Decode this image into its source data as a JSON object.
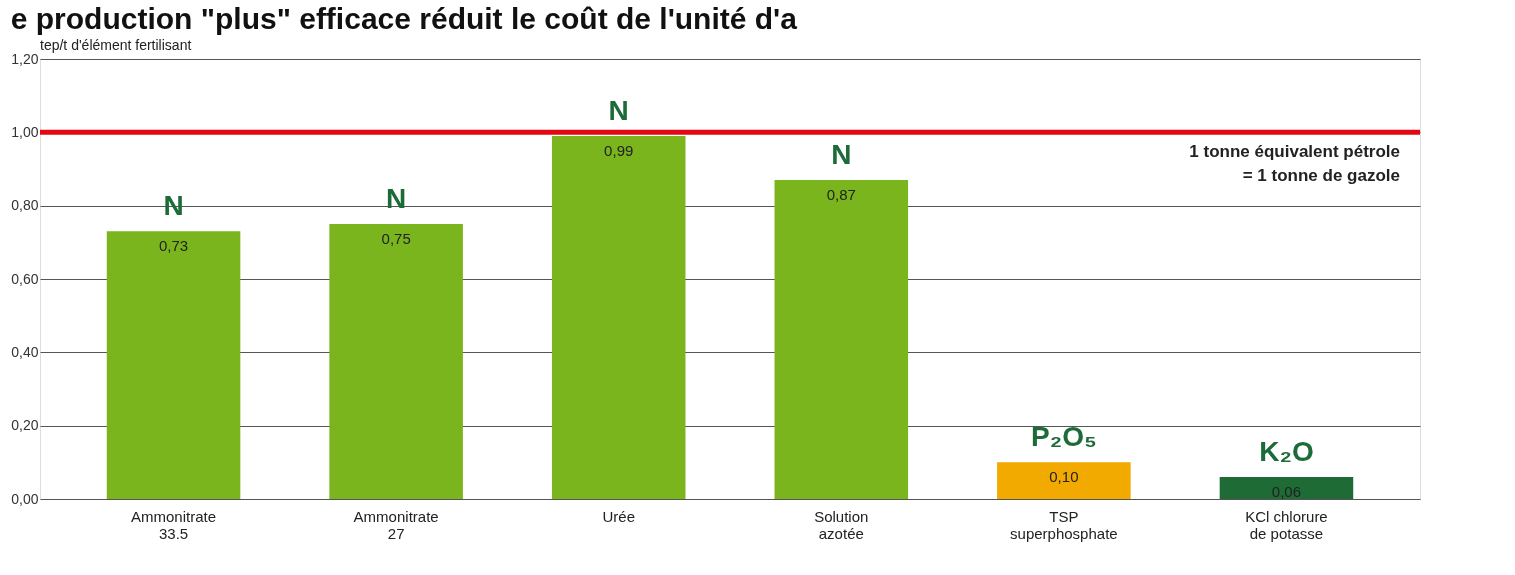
{
  "chart_data": {
    "type": "bar",
    "title": "e production \"plus\" efficace réduit le coût de l'unité d'a",
    "ylabel": "tep/t d'élément fertilisant",
    "categories": [
      "Ammonitrate\n33.5",
      "Ammonitrate\n27",
      "Urée",
      "Solution\nazotée",
      "TSP\nsuperphosphate",
      "KCl chlorure\nde potasse"
    ],
    "values": [
      0.73,
      0.75,
      0.99,
      0.87,
      0.1,
      0.06
    ],
    "colors": [
      "#7ab51d",
      "#7ab51d",
      "#7ab51d",
      "#7ab51d",
      "#f2a900",
      "#1e6b35"
    ],
    "value_labels": [
      "0,73",
      "0,75",
      "0,99",
      "0,87",
      "0,10",
      "0,06"
    ],
    "ylim": [
      0,
      1.2
    ],
    "yticks": [
      {
        "value": 0,
        "label": "0,00"
      },
      {
        "value": 0.2,
        "label": "0,20"
      },
      {
        "value": 0.4,
        "label": "0,40"
      },
      {
        "value": 0.6,
        "label": "0,60"
      },
      {
        "value": 0.8,
        "label": "0,80"
      },
      {
        "value": 1.0,
        "label": "1,00"
      },
      {
        "value": 1.2,
        "label": "1,20"
      }
    ],
    "grid": "y",
    "ref_lines": [
      {
        "axis": "y",
        "value": 1.0,
        "label": "1 tonne équivalent pétrole\n= 1 tonne de gazole",
        "color": "#e30613"
      }
    ],
    "annotations": [
      {
        "text": "N",
        "x": "Ammonitrate\n33.5",
        "y": 0.73
      },
      {
        "text": "N",
        "x": "Ammonitrate\n27",
        "y": 0.75
      },
      {
        "text": "N",
        "x": "Urée",
        "y": 0.99
      },
      {
        "text": "N",
        "x": "Solution\nazotée",
        "y": 0.87
      },
      {
        "text": "P₂O₅",
        "x": "TSP\nsuperphosphate",
        "y": 0.1
      },
      {
        "text": "K₂O",
        "x": "KCl chlorure\nde potasse",
        "y": 0.06
      }
    ]
  }
}
